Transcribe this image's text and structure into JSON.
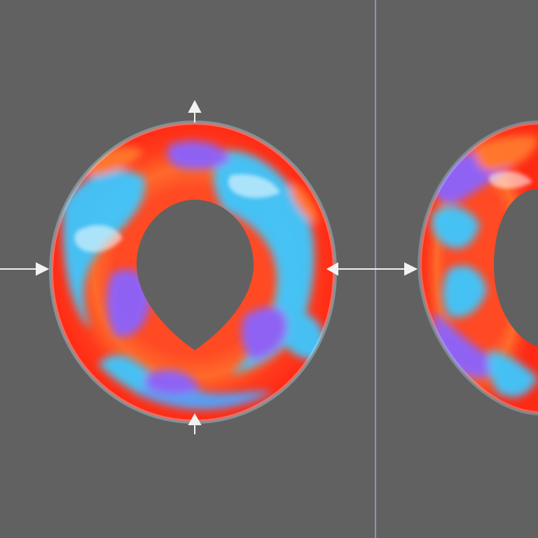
{
  "colors": {
    "background": "#616161",
    "divider": "#8f9db8",
    "arrow": "#f2f2f2",
    "red": "#ff3b1c",
    "orange": "#ff7a2e",
    "cyan": "#3ec8ff",
    "blue": "#4fa4ff",
    "violet": "#8a63ff",
    "teal": "#2ef0d4"
  },
  "icons": {
    "arrow": "arrow-icon",
    "double_arrow": "double-arrow-icon"
  },
  "scene": {
    "objects": [
      {
        "name": "marbled-torus-left",
        "palette": [
          "red",
          "cyan",
          "violet",
          "orange"
        ]
      },
      {
        "name": "marbled-torus-right",
        "palette": [
          "red",
          "cyan",
          "violet",
          "orange"
        ]
      }
    ]
  }
}
